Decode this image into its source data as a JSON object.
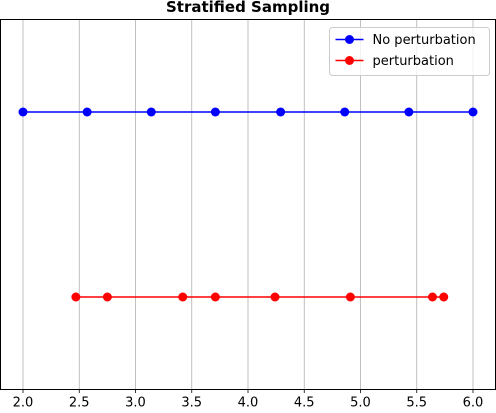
{
  "chart_data": {
    "type": "line",
    "title": "Stratified Sampling",
    "xlabel": "",
    "ylabel": "",
    "xlim": [
      1.8,
      6.2
    ],
    "ylim": [
      -0.5,
      1.5
    ],
    "xticks": [
      "2.0",
      "2.5",
      "3.0",
      "3.5",
      "4.0",
      "4.5",
      "5.0",
      "5.5",
      "6.0"
    ],
    "grid": "vertical",
    "legend_position": "top-right",
    "series": [
      {
        "name": "No perturbation",
        "color": "#0000ff",
        "marker": "circle",
        "x": [
          2.0,
          2.57,
          3.14,
          3.71,
          4.29,
          4.86,
          5.43,
          6.0
        ],
        "y": [
          1,
          1,
          1,
          1,
          1,
          1,
          1,
          1
        ]
      },
      {
        "name": "perturbation",
        "color": "#ff0000",
        "marker": "circle",
        "x": [
          2.47,
          2.75,
          3.42,
          3.71,
          4.24,
          4.91,
          5.64,
          5.74
        ],
        "y": [
          0,
          0,
          0,
          0,
          0,
          0,
          0,
          0
        ]
      }
    ]
  }
}
